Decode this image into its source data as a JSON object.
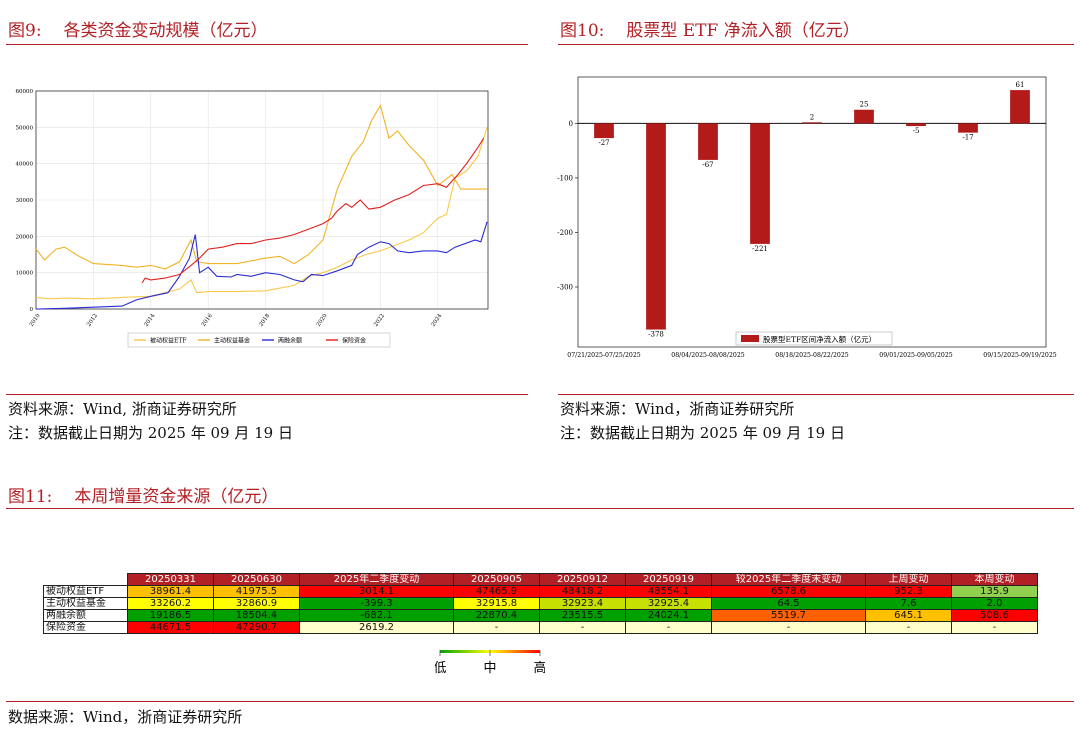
{
  "fig9": {
    "number": "图9:",
    "title": "各类资金变动规模（亿元）",
    "source": "资料来源：Wind, 浙商证券研究所",
    "note": "注：数据截止日期为 2025 年 09 月 19 日"
  },
  "fig10": {
    "number": "图10:",
    "title": "股票型 ETF 净流入额（亿元）",
    "source": "资料来源：Wind，浙商证券研究所",
    "note": "注：数据截止日期为 2025 年 09 月 19 日"
  },
  "fig11": {
    "number": "图11:",
    "title": "本周增量资金来源（亿元）",
    "source": "数据来源：Wind，浙商证券研究所"
  },
  "chart_data": [
    {
      "type": "line",
      "x_ticks": [
        "2010",
        "2012",
        "2014",
        "2016",
        "2018",
        "2020",
        "2022",
        "2024"
      ],
      "y_ticks": [
        "0",
        "10000",
        "20000",
        "30000",
        "40000",
        "50000",
        "60000"
      ],
      "xlim": [
        2010,
        2025.75
      ],
      "ylim": [
        0,
        60000
      ],
      "grid": true,
      "legend_position": "bottom",
      "series": [
        {
          "name": "被动权益ETF",
          "color": "#f7c948",
          "points": [
            [
              2010,
              3200
            ],
            [
              2010.5,
              2800
            ],
            [
              2011,
              3000
            ],
            [
              2012,
              2800
            ],
            [
              2013,
              3200
            ],
            [
              2014,
              3500
            ],
            [
              2014.5,
              4500
            ],
            [
              2015,
              5500
            ],
            [
              2015.4,
              8000
            ],
            [
              2015.6,
              4500
            ],
            [
              2016,
              4800
            ],
            [
              2017,
              4800
            ],
            [
              2018,
              5000
            ],
            [
              2019,
              6500
            ],
            [
              2019.5,
              9000
            ],
            [
              2020,
              10000
            ],
            [
              2020.5,
              11500
            ],
            [
              2021,
              13500
            ],
            [
              2021.5,
              15000
            ],
            [
              2022,
              16000
            ],
            [
              2022.5,
              17500
            ],
            [
              2023,
              19000
            ],
            [
              2023.5,
              21000
            ],
            [
              2024,
              25000
            ],
            [
              2024.3,
              26000
            ],
            [
              2024.6,
              36000
            ],
            [
              2025,
              38000
            ],
            [
              2025.4,
              42000
            ],
            [
              2025.72,
              50000
            ]
          ]
        },
        {
          "name": "主动权益基金",
          "color": "#f0b323",
          "points": [
            [
              2010,
              16500
            ],
            [
              2010.3,
              13500
            ],
            [
              2010.7,
              16500
            ],
            [
              2011,
              17000
            ],
            [
              2011.5,
              14500
            ],
            [
              2012,
              12500
            ],
            [
              2013,
              12000
            ],
            [
              2013.5,
              11500
            ],
            [
              2014,
              12000
            ],
            [
              2014.5,
              11000
            ],
            [
              2015,
              13000
            ],
            [
              2015.4,
              19000
            ],
            [
              2015.6,
              13000
            ],
            [
              2016,
              12500
            ],
            [
              2017,
              12500
            ],
            [
              2018,
              14000
            ],
            [
              2018.5,
              14500
            ],
            [
              2019,
              12500
            ],
            [
              2019.5,
              15000
            ],
            [
              2020,
              19000
            ],
            [
              2020.5,
              33000
            ],
            [
              2021,
              42000
            ],
            [
              2021.4,
              46000
            ],
            [
              2021.7,
              52000
            ],
            [
              2022,
              56000
            ],
            [
              2022.3,
              47000
            ],
            [
              2022.6,
              49000
            ],
            [
              2023,
              45000
            ],
            [
              2023.5,
              41000
            ],
            [
              2024,
              34000
            ],
            [
              2024.5,
              37000
            ],
            [
              2024.8,
              33000
            ],
            [
              2025.2,
              33000
            ],
            [
              2025.72,
              33000
            ]
          ]
        },
        {
          "name": "两融余额",
          "color": "#2b2bd6",
          "points": [
            [
              2010,
              0
            ],
            [
              2011,
              200
            ],
            [
              2012,
              500
            ],
            [
              2013,
              800
            ],
            [
              2013.5,
              2500
            ],
            [
              2014,
              3500
            ],
            [
              2014.6,
              4500
            ],
            [
              2015,
              9000
            ],
            [
              2015.35,
              14000
            ],
            [
              2015.55,
              20500
            ],
            [
              2015.7,
              10000
            ],
            [
              2016,
              11500
            ],
            [
              2016.3,
              9000
            ],
            [
              2016.8,
              8800
            ],
            [
              2017,
              9500
            ],
            [
              2017.5,
              9000
            ],
            [
              2018,
              10000
            ],
            [
              2018.5,
              9500
            ],
            [
              2019,
              8000
            ],
            [
              2019.3,
              7500
            ],
            [
              2019.6,
              9500
            ],
            [
              2020,
              9200
            ],
            [
              2020.5,
              10500
            ],
            [
              2021,
              12000
            ],
            [
              2021.2,
              15000
            ],
            [
              2021.6,
              17000
            ],
            [
              2022,
              18500
            ],
            [
              2022.3,
              18000
            ],
            [
              2022.6,
              16000
            ],
            [
              2023,
              15500
            ],
            [
              2023.5,
              16000
            ],
            [
              2024,
              16000
            ],
            [
              2024.3,
              15500
            ],
            [
              2024.6,
              17000
            ],
            [
              2025.3,
              19000
            ],
            [
              2025.5,
              18500
            ],
            [
              2025.72,
              24000
            ]
          ]
        },
        {
          "name": "保险资金",
          "color": "#e02020",
          "points": [
            [
              2013.7,
              7200
            ],
            [
              2013.8,
              8500
            ],
            [
              2014,
              8000
            ],
            [
              2014.5,
              8500
            ],
            [
              2015,
              9500
            ],
            [
              2015.4,
              12000
            ],
            [
              2015.7,
              14000
            ],
            [
              2016,
              16500
            ],
            [
              2016.5,
              17000
            ],
            [
              2017,
              18000
            ],
            [
              2017.5,
              18000
            ],
            [
              2018,
              19000
            ],
            [
              2018.5,
              19500
            ],
            [
              2019,
              20500
            ],
            [
              2019.5,
              22000
            ],
            [
              2020,
              23500
            ],
            [
              2020.3,
              25000
            ],
            [
              2020.5,
              27000
            ],
            [
              2020.8,
              29000
            ],
            [
              2021,
              28000
            ],
            [
              2021.3,
              30000
            ],
            [
              2021.6,
              27500
            ],
            [
              2022,
              28000
            ],
            [
              2022.5,
              30000
            ],
            [
              2023,
              31500
            ],
            [
              2023.5,
              34000
            ],
            [
              2024,
              34500
            ],
            [
              2024.3,
              33500
            ],
            [
              2024.7,
              37000
            ],
            [
              2025,
              40000
            ],
            [
              2025.4,
              44500
            ],
            [
              2025.6,
              47000
            ]
          ]
        }
      ]
    },
    {
      "type": "bar",
      "categories": [
        "07/21/2025-07/25/2025",
        "07/28/2025-08/01/2025",
        "08/04/2025-08/08/2025",
        "08/11/2025-08/15/2025",
        "08/18/2025-08/22/2025",
        "08/25/2025-08/29/2025",
        "09/01/2025-09/05/2025",
        "09/08/2025-09/12/2025",
        "09/15/2025-09/19/2025"
      ],
      "category_labels_shown": [
        "07/21/2025-07/25/2025",
        "",
        "08/04/2025-08/08/2025",
        "",
        "08/18/2025-08/22/2025",
        "",
        "09/01/2025-09/05/2025",
        "",
        "09/15/2025-09/19/2025"
      ],
      "values": [
        -27,
        -378,
        -67,
        -221,
        2,
        25,
        -5,
        -17,
        61
      ],
      "data_labels": [
        "-27",
        "-378",
        "-67",
        "-221",
        "2",
        "25",
        "-5",
        "-17",
        "61"
      ],
      "y_ticks": [
        "0",
        "-100",
        "-200",
        "-300"
      ],
      "ylim": [
        -410,
        85
      ],
      "series_name": "股票型ETF区间净流入额（亿元）",
      "color": "#b31b1b",
      "legend_position": "bottom-right"
    },
    {
      "type": "table",
      "headers": [
        "20250331",
        "20250630",
        "2025年二季度变动",
        "20250905",
        "20250912",
        "20250919",
        "较2025年二季度末变动",
        "上周变动",
        "本周变动"
      ],
      "rows": [
        {
          "name": "被动权益ETF",
          "cells": [
            {
              "text": "38961.4",
              "color": "#ffc000"
            },
            {
              "text": "41975.5",
              "color": "#ffc000"
            },
            {
              "text": "3014.1",
              "color": "#ff0000"
            },
            {
              "text": "47465.9",
              "color": "#ff0000"
            },
            {
              "text": "48418.2",
              "color": "#ff0000"
            },
            {
              "text": "48554.1",
              "color": "#ff0000"
            },
            {
              "text": "6578.6",
              "color": "#ff0000"
            },
            {
              "text": "952.3",
              "color": "#ff0000"
            },
            {
              "text": "135.9",
              "color": "#92d050"
            }
          ]
        },
        {
          "name": "主动权益基金",
          "cells": [
            {
              "text": "33260.2",
              "color": "#ffff00"
            },
            {
              "text": "32860.9",
              "color": "#ffff00"
            },
            {
              "text": "-399.3",
              "color": "#00a000"
            },
            {
              "text": "32915.8",
              "color": "#ffff00"
            },
            {
              "text": "32923.4",
              "color": "#c6e000"
            },
            {
              "text": "32925.4",
              "color": "#c6e000"
            },
            {
              "text": "64.5",
              "color": "#00a000"
            },
            {
              "text": "7.6",
              "color": "#00a000"
            },
            {
              "text": "2.0",
              "color": "#00a000"
            }
          ]
        },
        {
          "name": "两融余额",
          "cells": [
            {
              "text": "19186.5",
              "color": "#00a000"
            },
            {
              "text": "18504.4",
              "color": "#00a000"
            },
            {
              "text": "-682.1",
              "color": "#00a000"
            },
            {
              "text": "22870.4",
              "color": "#00a000"
            },
            {
              "text": "23515.5",
              "color": "#00a000"
            },
            {
              "text": "24024.1",
              "color": "#00a000"
            },
            {
              "text": "5519.7",
              "color": "#ff6000"
            },
            {
              "text": "645.1",
              "color": "#ffc000"
            },
            {
              "text": "508.6",
              "color": "#ff0000"
            }
          ]
        },
        {
          "name": "保险资金",
          "cells": [
            {
              "text": "44671.5",
              "color": "#ff0000"
            },
            {
              "text": "47290.7",
              "color": "#ff0000"
            },
            {
              "text": "2619.2",
              "color": "#ffffcc"
            },
            {
              "text": "-",
              "color": "#ffffcc"
            },
            {
              "text": "-",
              "color": "#ffffcc"
            },
            {
              "text": "-",
              "color": "#ffffcc"
            },
            {
              "text": "-",
              "color": "#ffffcc"
            },
            {
              "text": "-",
              "color": "#ffffcc"
            },
            {
              "text": "-",
              "color": "#ffffcc"
            }
          ]
        }
      ],
      "scale_labels": [
        "低",
        "中",
        "高"
      ]
    }
  ]
}
